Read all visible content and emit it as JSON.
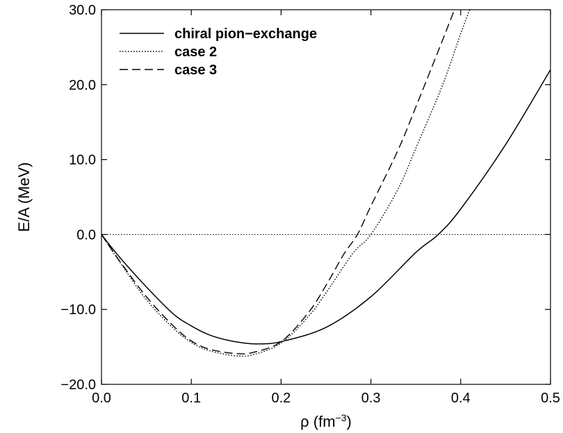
{
  "chart_data": {
    "type": "line",
    "xlabel": {
      "base": "ρ (fm",
      "sup": "−3",
      "close": ")"
    },
    "ylabel": "E/A (MeV)",
    "xlim": [
      0.0,
      0.5
    ],
    "ylim": [
      -20.0,
      30.0
    ],
    "x_ticks": [
      0.0,
      0.1,
      0.2,
      0.3,
      0.4,
      0.5
    ],
    "x_tick_labels": [
      "0.0",
      "0.1",
      "0.2",
      "0.3",
      "0.4",
      "0.5"
    ],
    "y_ticks": [
      -20.0,
      -10.0,
      0.0,
      10.0,
      20.0,
      30.0
    ],
    "y_tick_labels": [
      "−20.0",
      "−10.0",
      "0.0",
      "10.0",
      "20.0",
      "30.0"
    ],
    "grid": false,
    "legend_position": "top-left",
    "reference_line": {
      "y": 0.0,
      "style": "dotted"
    },
    "series": [
      {
        "name": "chiral pion−exchange",
        "style": "solid",
        "x": [
          0.0,
          0.02,
          0.05,
          0.08,
          0.1,
          0.12,
          0.14,
          0.16,
          0.175,
          0.2,
          0.25,
          0.3,
          0.35,
          0.375,
          0.4,
          0.45,
          0.5
        ],
        "y": [
          0.0,
          -3.0,
          -7.0,
          -10.6,
          -12.2,
          -13.4,
          -14.1,
          -14.5,
          -14.6,
          -14.3,
          -12.4,
          -8.3,
          -2.4,
          0.0,
          3.4,
          12.0,
          22.0
        ]
      },
      {
        "name": "case 2",
        "style": "dotted",
        "x": [
          0.0,
          0.02,
          0.05,
          0.08,
          0.1,
          0.12,
          0.15,
          0.17,
          0.2,
          0.23,
          0.25,
          0.28,
          0.3,
          0.33,
          0.35,
          0.38,
          0.4,
          0.41
        ],
        "y": [
          0.0,
          -3.6,
          -8.7,
          -12.5,
          -14.4,
          -15.5,
          -16.2,
          -16.0,
          -14.5,
          -11.0,
          -7.8,
          -2.5,
          0.0,
          6.0,
          11.5,
          20.0,
          26.8,
          30.0
        ]
      },
      {
        "name": "case 3",
        "style": "dashed",
        "x": [
          0.0,
          0.02,
          0.05,
          0.08,
          0.1,
          0.12,
          0.15,
          0.17,
          0.2,
          0.23,
          0.25,
          0.27,
          0.285,
          0.3,
          0.33,
          0.35,
          0.38,
          0.393
        ],
        "y": [
          0.0,
          -3.5,
          -8.3,
          -12.2,
          -14.2,
          -15.3,
          -15.9,
          -15.7,
          -14.3,
          -10.5,
          -6.8,
          -2.6,
          0.0,
          3.8,
          11.2,
          17.0,
          26.0,
          30.0
        ]
      }
    ]
  }
}
